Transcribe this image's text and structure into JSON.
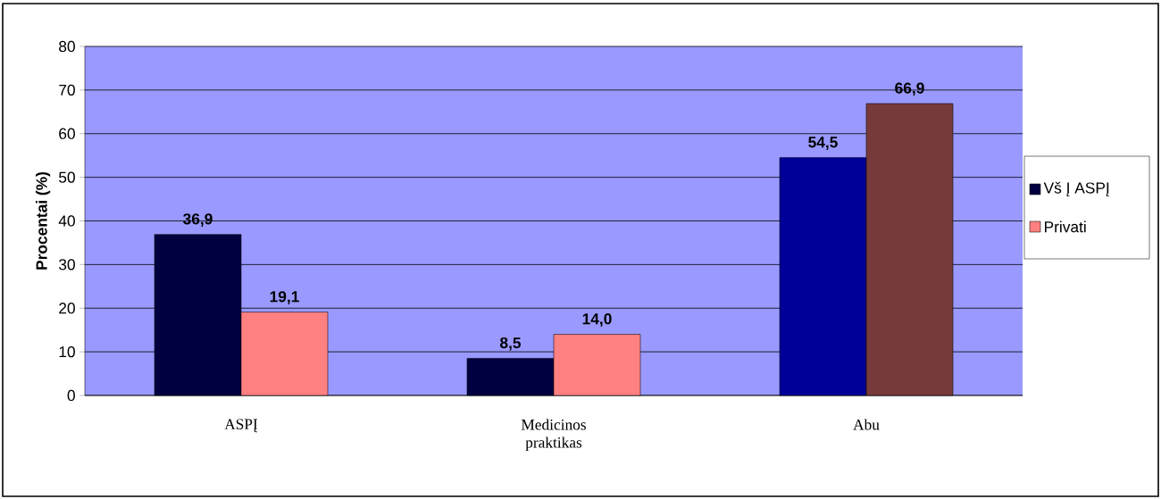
{
  "chart_data": {
    "type": "bar",
    "ylabel": "Procentai (%)",
    "categories": [
      "ASPĮ",
      "Medicinos praktikas",
      "Abu"
    ],
    "series": [
      {
        "name": "Vš Į ASPĮ",
        "color": "#000040",
        "colors": [
          "#000040",
          "#000040",
          "#000099"
        ],
        "values": [
          36.9,
          8.5,
          54.5
        ],
        "value_labels": [
          "36,9",
          "8,5",
          "54,5"
        ]
      },
      {
        "name": "Privati",
        "color": "#ff8080",
        "colors": [
          "#ff8080",
          "#ff8080",
          "#773a3a"
        ],
        "values": [
          19.1,
          14.0,
          66.9
        ],
        "value_labels": [
          "19,1",
          "14,0",
          "66,9"
        ]
      }
    ],
    "ylim": [
      0,
      80
    ],
    "yticks": [
      0,
      10,
      20,
      30,
      40,
      50,
      60,
      70,
      80
    ],
    "grid": "y",
    "legend": "right"
  }
}
